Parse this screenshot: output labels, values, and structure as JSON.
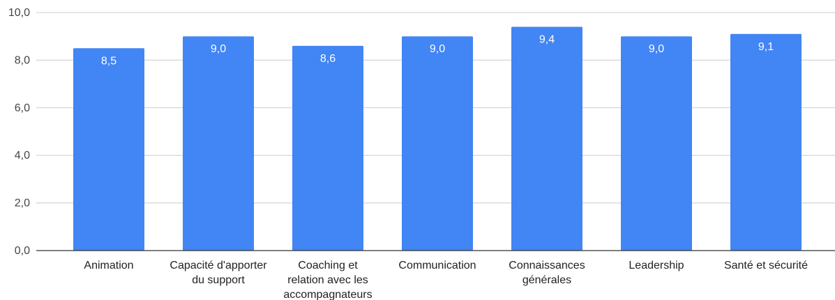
{
  "chart_data": {
    "type": "bar",
    "title": "",
    "xlabel": "",
    "ylabel": "",
    "categories": [
      [
        "Animation"
      ],
      [
        "Capacité d'apporter",
        "du support"
      ],
      [
        "Coaching et",
        "relation avec les",
        "accompagnateurs"
      ],
      [
        "Communication"
      ],
      [
        "Connaissances",
        "générales"
      ],
      [
        "Leadership"
      ],
      [
        "Santé et sécurité"
      ]
    ],
    "values": [
      8.5,
      9.0,
      8.6,
      9.0,
      9.4,
      9.0,
      9.1
    ],
    "value_labels": [
      "8,5",
      "9,0",
      "8,6",
      "9,0",
      "9,4",
      "9,0",
      "9,1"
    ],
    "ylim": [
      0,
      10
    ],
    "yticks": [
      0,
      2,
      4,
      6,
      8,
      10
    ],
    "ytick_labels": [
      "0,0",
      "2,0",
      "4,0",
      "6,0",
      "8,0",
      "10,0"
    ],
    "grid": true,
    "legend": "none",
    "colors": {
      "bar": "#4285f4",
      "grid": "#cccccc",
      "axis": "#333333"
    }
  }
}
